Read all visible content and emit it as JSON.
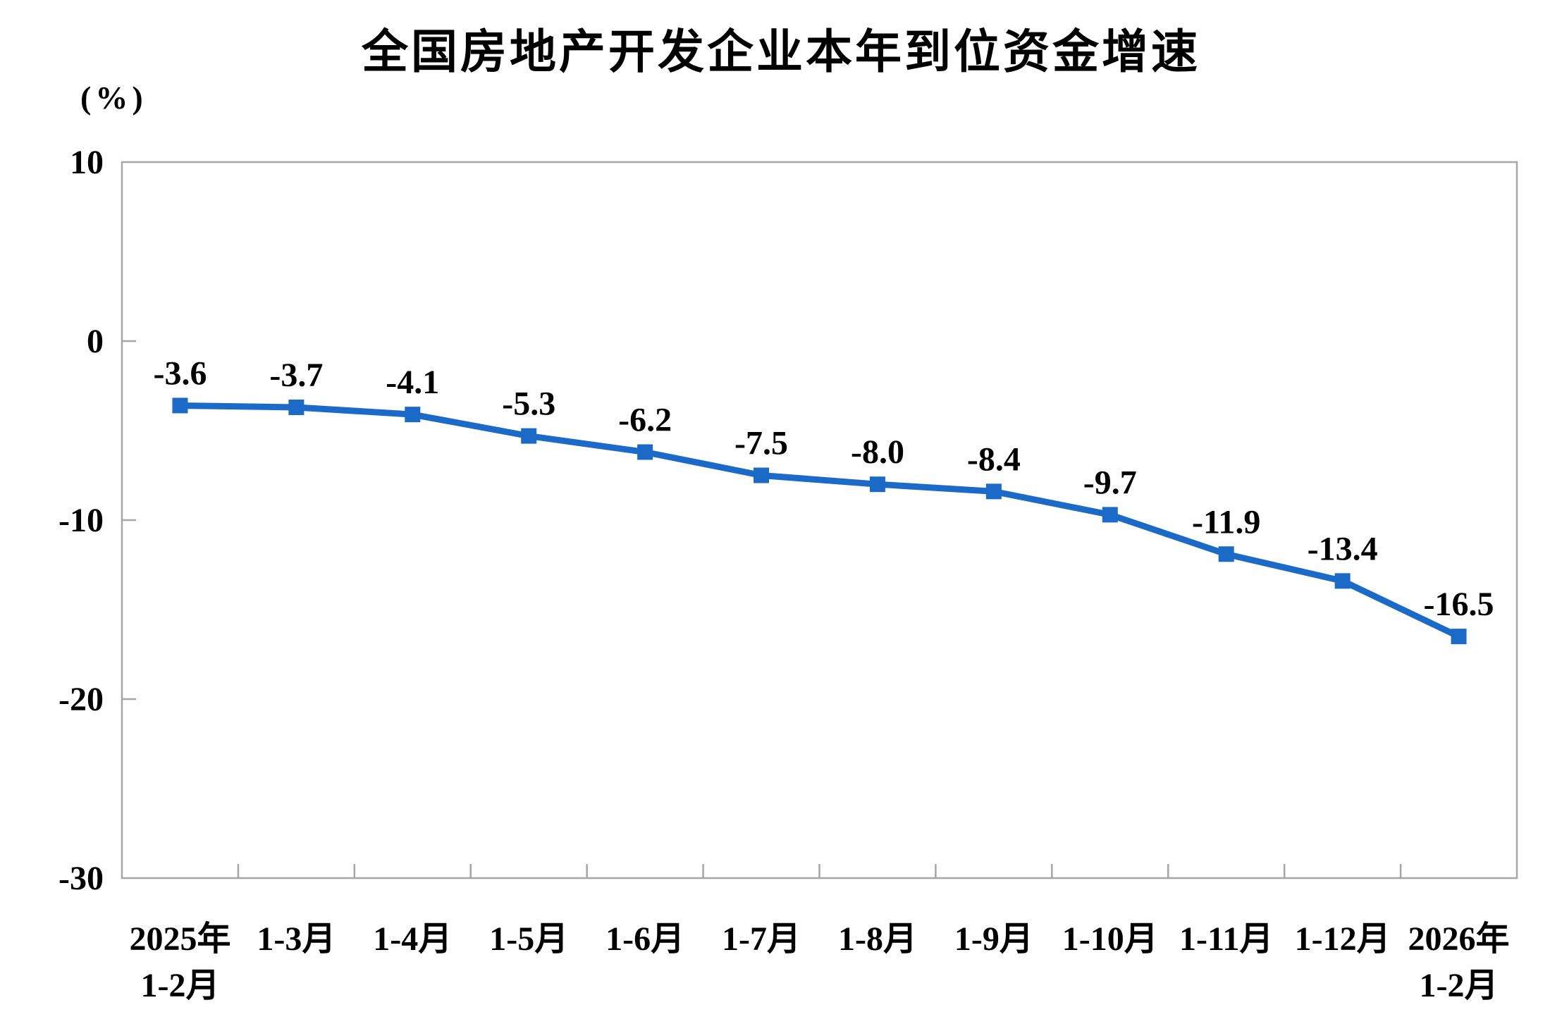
{
  "chart": {
    "title": "全国房地产开发企业本年到位资金增速",
    "unit_label": "(%)"
  },
  "chart_data": {
    "type": "line",
    "title": "全国房地产开发企业本年到位资金增速",
    "ylabel": "(%)",
    "categories": [
      "2025年1-2月",
      "1-3月",
      "1-4月",
      "1-5月",
      "1-6月",
      "1-7月",
      "1-8月",
      "1-9月",
      "1-10月",
      "1-11月",
      "1-12月",
      "2026年1-2月"
    ],
    "category_lines": [
      [
        "2025年",
        "1-2月"
      ],
      [
        "1-3月"
      ],
      [
        "1-4月"
      ],
      [
        "1-5月"
      ],
      [
        "1-6月"
      ],
      [
        "1-7月"
      ],
      [
        "1-8月"
      ],
      [
        "1-9月"
      ],
      [
        "1-10月"
      ],
      [
        "1-11月"
      ],
      [
        "1-12月"
      ],
      [
        "2026年",
        "1-2月"
      ]
    ],
    "values": [
      -3.6,
      -3.7,
      -4.1,
      -5.3,
      -6.2,
      -7.5,
      -8.0,
      -8.4,
      -9.7,
      -11.9,
      -13.4,
      -16.5
    ],
    "data_labels": [
      "-3.6",
      "-3.7",
      "-4.1",
      "-5.3",
      "-6.2",
      "-7.5",
      "-8.0",
      "-8.4",
      "-9.7",
      "-11.9",
      "-13.4",
      "-16.5"
    ],
    "ylim": [
      -30,
      10
    ],
    "yticks": [
      10,
      0,
      -10,
      -20,
      -30
    ],
    "grid": false,
    "legend_position": "none",
    "marker": "square",
    "colors": {
      "series": "#1b6ac8",
      "axis": "#a6a6a6",
      "text": "#000000"
    }
  }
}
